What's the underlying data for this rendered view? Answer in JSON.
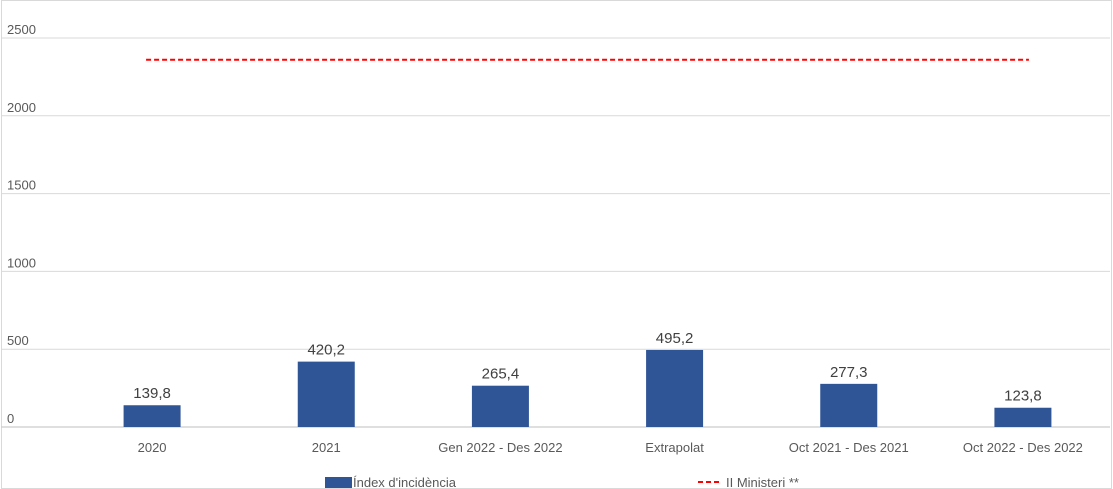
{
  "chart_data": {
    "type": "bar",
    "categories": [
      "2020",
      "2021",
      "Gen 2022 - Des 2022",
      "Extrapolat",
      "Oct 2021 - Des 2021",
      "Oct 2022 - Des 2022"
    ],
    "series": [
      {
        "name": "Índex d'incidència",
        "type": "bar",
        "values": [
          139.8,
          420.2,
          265.4,
          495.2,
          277.3,
          123.8
        ],
        "data_labels": [
          "139,8",
          "420,2",
          "265,4",
          "495,2",
          "277,3",
          "123,8"
        ],
        "color": "#2F5597"
      },
      {
        "name": "II Ministeri **",
        "type": "line",
        "style": "dashed",
        "value": 2360,
        "color": "#FF0000"
      }
    ],
    "ylim": [
      0,
      2500
    ],
    "yticks": [
      0,
      500,
      1000,
      1500,
      2000,
      2500
    ],
    "ytick_labels": [
      "0",
      "500",
      "1000",
      "1500",
      "2000",
      "2500"
    ],
    "grid": true,
    "legend_position": "bottom",
    "title": "",
    "xlabel": "",
    "ylabel": ""
  }
}
